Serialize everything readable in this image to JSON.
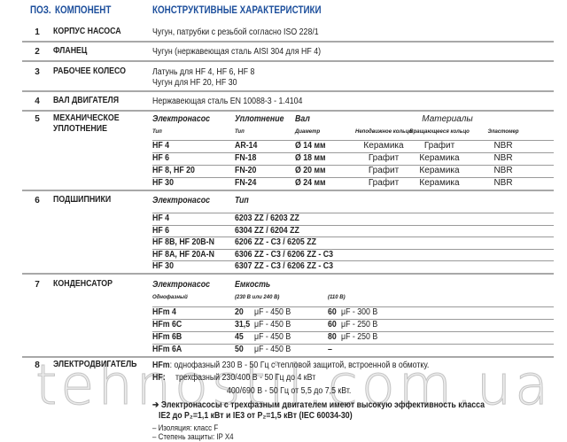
{
  "header": {
    "pos": "ПОЗ.",
    "component": "КОМПОНЕНТ",
    "characteristics": "КОНСТРУКТИВНЫЕ ХАРАКТЕРИСТИКИ"
  },
  "rows": [
    {
      "n": "1",
      "name": "КОРПУС НАСОСА",
      "text": [
        "Чугун, патрубки с резьбой согласно ISO 228/1"
      ]
    },
    {
      "n": "2",
      "name": "ФЛАНЕЦ",
      "text": [
        "Чугун (нержавеющая сталь AISI 304 для HF 4)"
      ]
    },
    {
      "n": "3",
      "name": "РАБОЧЕЕ КОЛЕСО",
      "text": [
        "Латунь для HF 4, HF 6, HF 8",
        "Чугун для HF 20, HF 30"
      ]
    },
    {
      "n": "4",
      "name": "ВАЛ ДВИГАТЕЛЯ",
      "text": [
        "Нержавеющая сталь EN 10088-3 - 1.4104"
      ]
    }
  ],
  "seal": {
    "n": "5",
    "name1": "МЕХАНИЧЕСКОЕ",
    "name2": "УПЛОТНЕНИЕ",
    "h": [
      "Электронасос",
      "Уплотнение",
      "Вал",
      "Материалы"
    ],
    "sub": [
      "Тип",
      "Тип",
      "Диаметр",
      "Неподвижное кольцо",
      "Вращающееся кольцо",
      "Эластомер"
    ],
    "rows": [
      [
        "HF 4",
        "AR-14",
        "Ø 14 мм",
        "Керамика",
        "Графит",
        "NBR"
      ],
      [
        "HF 6",
        "FN-18",
        "Ø 18 мм",
        "Графит",
        "Керамика",
        "NBR"
      ],
      [
        "HF 8, HF 20",
        "FN-20",
        "Ø 20 мм",
        "Графит",
        "Керамика",
        "NBR"
      ],
      [
        "HF 30",
        "FN-24",
        "Ø 24 мм",
        "Графит",
        "Керамика",
        "NBR"
      ]
    ]
  },
  "bearings": {
    "n": "6",
    "name": "ПОДШИПНИКИ",
    "h": [
      "Электронасос",
      "Тип"
    ],
    "rows": [
      [
        "HF 4",
        "6203 ZZ / 6203 ZZ"
      ],
      [
        "HF 6",
        "6304 ZZ / 6204 ZZ"
      ],
      [
        "HF 8B, HF 20B-N",
        "6206 ZZ - C3 / 6205 ZZ"
      ],
      [
        "HF 8A, HF 20A-N",
        "6306 ZZ - C3 / 6206 ZZ - C3"
      ],
      [
        "HF 30",
        "6307 ZZ - C3 / 6206 ZZ - C3"
      ]
    ]
  },
  "capacitor": {
    "n": "7",
    "name": "КОНДЕНСАТОР",
    "h": [
      "Электронасос",
      "Емкость"
    ],
    "sub": [
      "Однофазный",
      "(230 В или 240 В)",
      "(110 В)"
    ],
    "rows": [
      [
        "HFm 4",
        "20",
        "μF - 450 В",
        "60",
        "μF - 300 В"
      ],
      [
        "HFm 6C",
        "31,5",
        "μF - 450 В",
        "60",
        "μF - 250 В"
      ],
      [
        "HFm 6B",
        "45",
        "μF - 450 В",
        "80",
        "μF - 250 В"
      ],
      [
        "HFm 6A",
        "50",
        "μF - 450 В",
        "–",
        ""
      ]
    ]
  },
  "motor": {
    "n": "8",
    "name": "ЭЛЕКТРОДВИГАТЕЛЬ",
    "hfm": "HFm",
    "hfm_text": ": однофазный 230 В - 50 Гц с тепловой защитой, встроенной в обмотку.",
    "hf": "HF:",
    "hf_text": "трехфазный 230/400 В - 50 Гц до 4 кВт",
    "hf_text2": "400/690 В - 50 Гц от 5,5 до 7,5 кВт.",
    "note1": "➔ Электронасосы с трехфазным двигателем имеют высокую эффективность класса",
    "note2": "IE2 до P₂=1,1 кВт и IE3 от  P₂=1,5 кВт  (IEC 60034-30)",
    "ins": "– Изоляция: класс F",
    "prot": "– Степень защиты: IP X4"
  },
  "watermark": "tehnostil.com.ua"
}
